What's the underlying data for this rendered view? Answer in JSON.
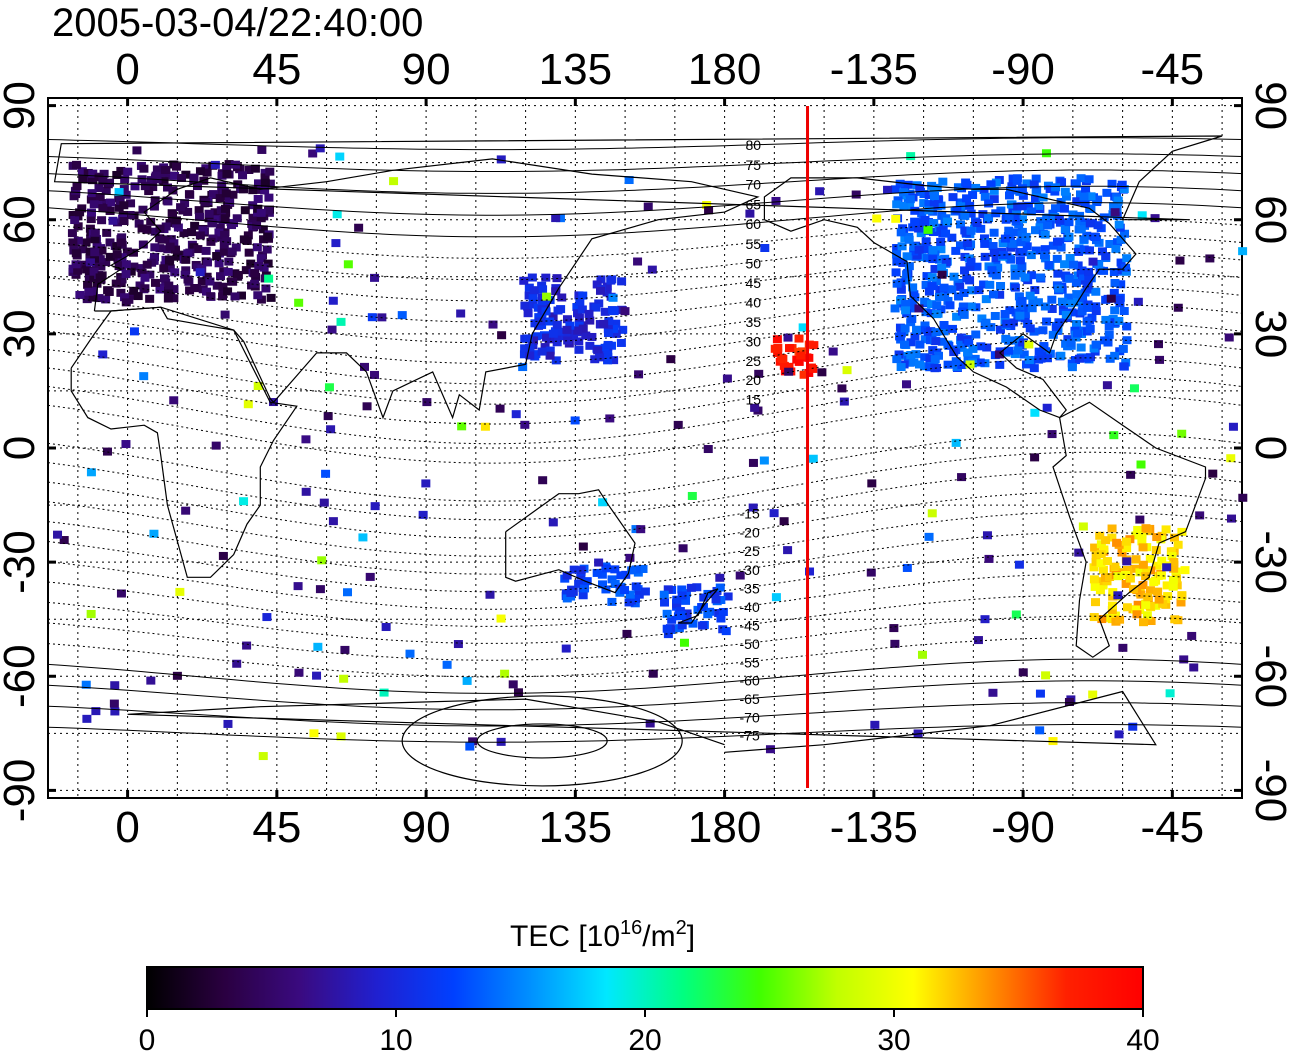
{
  "title": "2005-03-04/22:40:00",
  "map": {
    "lon_ticks": [
      "0",
      "45",
      "90",
      "135",
      "180",
      "-135",
      "-90",
      "-45"
    ],
    "lon_values": [
      0,
      45,
      90,
      135,
      180,
      225,
      270,
      315
    ],
    "lat_ticks": [
      "90",
      "60",
      "30",
      "0",
      "-30",
      "-60",
      "-90"
    ],
    "lat_values": [
      90,
      60,
      30,
      0,
      -30,
      -60,
      -90
    ],
    "lon_range": [
      -24,
      336
    ],
    "lat_range": [
      -92,
      92
    ],
    "meridian_line_lon": -155,
    "meridian_line_color": "#ee0000",
    "mlat_labels_north": [
      "80",
      "75",
      "70",
      "65",
      "60",
      "55",
      "50",
      "45",
      "40",
      "35",
      "30",
      "25",
      "20",
      "15"
    ],
    "mlat_labels_south": [
      "-15",
      "-20",
      "-25",
      "-30",
      "-35",
      "-40",
      "-45",
      "-50",
      "-55",
      "-60",
      "-65",
      "-70",
      "-75"
    ]
  },
  "colorbar": {
    "label_main": "TEC  [10",
    "label_exp1": "16",
    "label_mid": "/m",
    "label_exp2": "2",
    "label_end": "]",
    "ticks": [
      "0",
      "10",
      "20",
      "30",
      "40"
    ],
    "tick_values": [
      0,
      10,
      20,
      30,
      40
    ],
    "range": [
      0,
      40
    ],
    "colors": [
      "#000000",
      "#2a0040",
      "#3a0a80",
      "#2020d0",
      "#0040ff",
      "#0090ff",
      "#00e8ff",
      "#00ff80",
      "#40ff00",
      "#c0ff00",
      "#ffff00",
      "#ff9000",
      "#ff2000",
      "#ff0000"
    ]
  },
  "tec_regions": [
    {
      "name": "europe",
      "lon": [
        -18,
        42
      ],
      "lat": [
        40,
        76
      ],
      "tec": 4
    },
    {
      "name": "north-america",
      "lon": [
        230,
        300
      ],
      "lat": [
        22,
        72
      ],
      "tec": 13
    },
    {
      "name": "east-asia",
      "lon": [
        118,
        148
      ],
      "lat": [
        24,
        46
      ],
      "tec": 10
    },
    {
      "name": "south-america",
      "lon": [
        290,
        318
      ],
      "lat": [
        -45,
        -20
      ],
      "tec": 32
    },
    {
      "name": "pacific-hotspot",
      "lon": [
        193,
        207
      ],
      "lat": [
        20,
        30
      ],
      "tec": 38
    },
    {
      "name": "nz",
      "lon": [
        160,
        180
      ],
      "lat": [
        -48,
        -35
      ],
      "tec": 12
    },
    {
      "name": "australia",
      "lon": [
        130,
        155
      ],
      "lat": [
        -40,
        -30
      ],
      "tec": 12
    }
  ]
}
